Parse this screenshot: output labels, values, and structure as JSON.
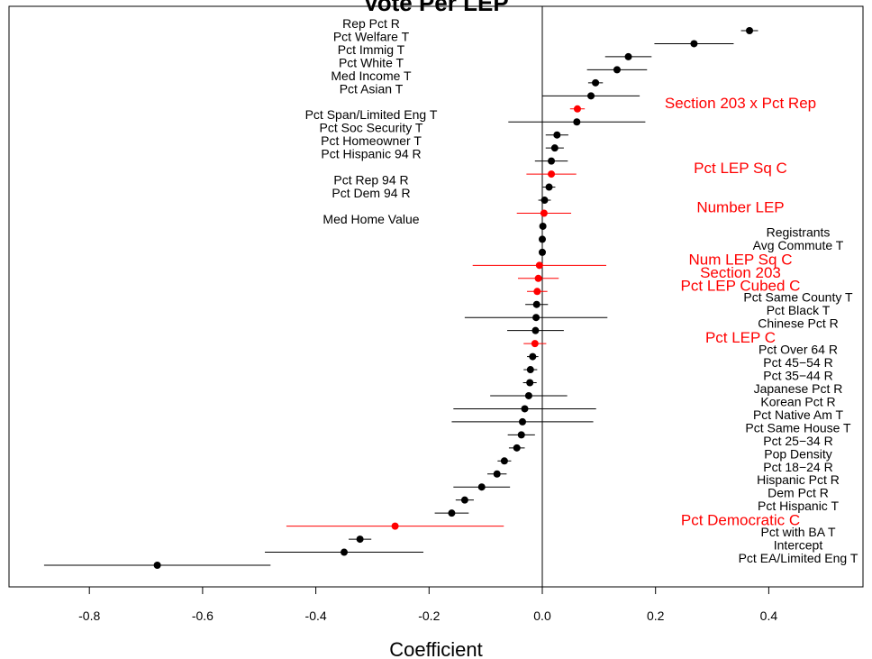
{
  "chart_data": {
    "type": "scatter",
    "title": "Vote Per LEP",
    "xlabel": "Coefficient",
    "ylabel": "",
    "xlim": [
      -0.93,
      0.57
    ],
    "x_ticks": [
      "-0.8",
      "-0.6",
      "-0.4",
      "-0.2",
      "0.0",
      "0.2",
      "0.4"
    ],
    "x_tick_values": [
      -0.8,
      -0.6,
      -0.4,
      -0.2,
      0.0,
      0.2,
      0.4
    ],
    "zero_line": 0,
    "highlight_color": "#ff0000",
    "default_color": "#000000",
    "points": [
      {
        "label": "Rep Pct R",
        "coef": 0.366,
        "low": 0.351,
        "high": 0.381,
        "highlight": false,
        "side": "left"
      },
      {
        "label": "Pct Welfare T",
        "coef": 0.268,
        "low": 0.198,
        "high": 0.338,
        "highlight": false,
        "side": "left"
      },
      {
        "label": "Pct Immig T",
        "coef": 0.152,
        "low": 0.111,
        "high": 0.193,
        "highlight": false,
        "side": "left"
      },
      {
        "label": "Pct White T",
        "coef": 0.132,
        "low": 0.079,
        "high": 0.185,
        "highlight": false,
        "side": "left"
      },
      {
        "label": "Med Income T",
        "coef": 0.094,
        "low": 0.081,
        "high": 0.107,
        "highlight": false,
        "side": "left"
      },
      {
        "label": "Pct Asian T",
        "coef": 0.086,
        "low": 0.0,
        "high": 0.172,
        "highlight": false,
        "side": "left"
      },
      {
        "label": "Section 203 x Pct Rep",
        "coef": 0.062,
        "low": 0.049,
        "high": 0.075,
        "highlight": true,
        "side": "right"
      },
      {
        "label": "Pct Span/Limited Eng T",
        "coef": 0.061,
        "low": -0.06,
        "high": 0.182,
        "highlight": false,
        "side": "left"
      },
      {
        "label": "Pct Soc Security T",
        "coef": 0.026,
        "low": 0.006,
        "high": 0.046,
        "highlight": false,
        "side": "left"
      },
      {
        "label": "Pct Homeowner T",
        "coef": 0.022,
        "low": 0.006,
        "high": 0.038,
        "highlight": false,
        "side": "left"
      },
      {
        "label": "Pct Hispanic 94 R",
        "coef": 0.016,
        "low": -0.013,
        "high": 0.045,
        "highlight": false,
        "side": "left"
      },
      {
        "label": "Pct LEP Sq C",
        "coef": 0.016,
        "low": -0.028,
        "high": 0.06,
        "highlight": true,
        "side": "right"
      },
      {
        "label": "Pct Rep 94 R",
        "coef": 0.012,
        "low": 0.001,
        "high": 0.023,
        "highlight": false,
        "side": "left"
      },
      {
        "label": "Pct Dem 94 R",
        "coef": 0.004,
        "low": -0.007,
        "high": 0.015,
        "highlight": false,
        "side": "left"
      },
      {
        "label": "Number LEP",
        "coef": 0.003,
        "low": -0.045,
        "high": 0.051,
        "highlight": true,
        "side": "right"
      },
      {
        "label": "Med Home Value",
        "coef": 0.001,
        "low": -0.003,
        "high": 0.005,
        "highlight": false,
        "side": "left"
      },
      {
        "label": "Registrants",
        "coef": 0.0,
        "low": -0.002,
        "high": 0.002,
        "highlight": false,
        "side": "right"
      },
      {
        "label": "Avg Commute T",
        "coef": 0.0,
        "low": -0.002,
        "high": 0.002,
        "highlight": false,
        "side": "right"
      },
      {
        "label": "Num LEP Sq C",
        "coef": -0.005,
        "low": -0.123,
        "high": 0.113,
        "highlight": true,
        "side": "right"
      },
      {
        "label": "Section 203",
        "coef": -0.007,
        "low": -0.043,
        "high": 0.029,
        "highlight": true,
        "side": "right"
      },
      {
        "label": "Pct LEP Cubed C",
        "coef": -0.009,
        "low": -0.027,
        "high": 0.009,
        "highlight": true,
        "side": "right"
      },
      {
        "label": "Pct Same County T",
        "coef": -0.01,
        "low": -0.03,
        "high": 0.01,
        "highlight": false,
        "side": "right"
      },
      {
        "label": "Pct Black T",
        "coef": -0.011,
        "low": -0.137,
        "high": 0.115,
        "highlight": false,
        "side": "right"
      },
      {
        "label": "Chinese Pct R",
        "coef": -0.012,
        "low": -0.062,
        "high": 0.038,
        "highlight": false,
        "side": "right"
      },
      {
        "label": "Pct LEP C",
        "coef": -0.013,
        "low": -0.033,
        "high": 0.007,
        "highlight": true,
        "side": "right"
      },
      {
        "label": "Pct Over 64 R",
        "coef": -0.017,
        "low": -0.027,
        "high": -0.007,
        "highlight": false,
        "side": "right"
      },
      {
        "label": "Pct 45−54 R",
        "coef": -0.021,
        "low": -0.033,
        "high": -0.009,
        "highlight": false,
        "side": "right"
      },
      {
        "label": "Pct 35−44 R",
        "coef": -0.022,
        "low": -0.034,
        "high": -0.01,
        "highlight": false,
        "side": "right"
      },
      {
        "label": "Japanese Pct R",
        "coef": -0.024,
        "low": -0.092,
        "high": 0.044,
        "highlight": false,
        "side": "right"
      },
      {
        "label": "Korean Pct R",
        "coef": -0.031,
        "low": -0.157,
        "high": 0.095,
        "highlight": false,
        "side": "right"
      },
      {
        "label": "Pct Native Am T",
        "coef": -0.035,
        "low": -0.16,
        "high": 0.09,
        "highlight": false,
        "side": "right"
      },
      {
        "label": "Pct Same House T",
        "coef": -0.037,
        "low": -0.061,
        "high": -0.013,
        "highlight": false,
        "side": "right"
      },
      {
        "label": "Pct 25−34 R",
        "coef": -0.045,
        "low": -0.059,
        "high": -0.031,
        "highlight": false,
        "side": "right"
      },
      {
        "label": "Pop Density",
        "coef": -0.067,
        "low": -0.079,
        "high": -0.055,
        "highlight": false,
        "side": "right"
      },
      {
        "label": "Pct 18−24 R",
        "coef": -0.08,
        "low": -0.097,
        "high": -0.063,
        "highlight": false,
        "side": "right"
      },
      {
        "label": "Hispanic Pct R",
        "coef": -0.107,
        "low": -0.157,
        "high": -0.057,
        "highlight": false,
        "side": "right"
      },
      {
        "label": "Dem Pct R",
        "coef": -0.137,
        "low": -0.153,
        "high": -0.121,
        "highlight": false,
        "side": "right"
      },
      {
        "label": "Pct Hispanic T",
        "coef": -0.16,
        "low": -0.19,
        "high": -0.13,
        "highlight": false,
        "side": "right"
      },
      {
        "label": "Pct Democratic C",
        "coef": -0.26,
        "low": -0.452,
        "high": -0.068,
        "highlight": true,
        "side": "right"
      },
      {
        "label": "Pct with BA T",
        "coef": -0.322,
        "low": -0.342,
        "high": -0.302,
        "highlight": false,
        "side": "right"
      },
      {
        "label": "Intercept",
        "coef": -0.35,
        "low": -0.49,
        "high": -0.21,
        "highlight": false,
        "side": "right"
      },
      {
        "label": "Pct EA/Limited Eng T",
        "coef": -0.68,
        "low": -0.88,
        "high": -0.48,
        "highlight": false,
        "side": "right"
      }
    ]
  }
}
